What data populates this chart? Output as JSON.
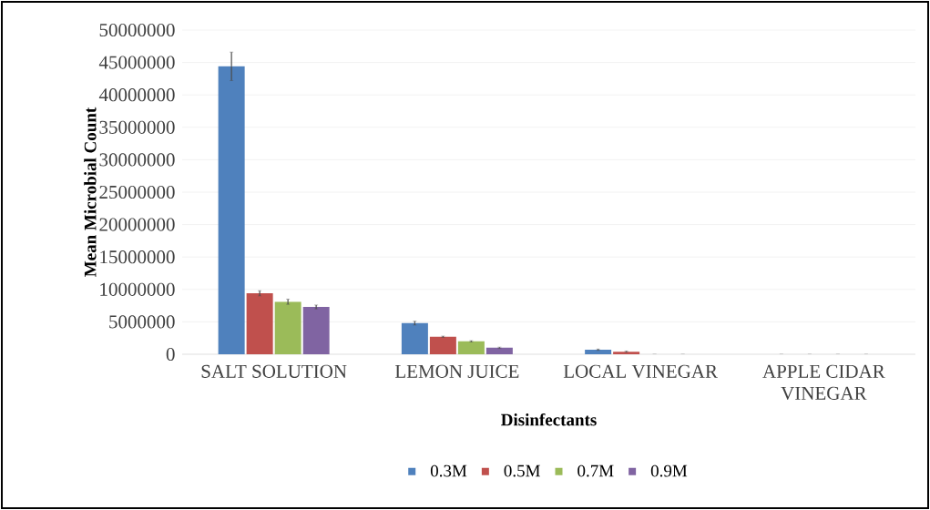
{
  "chart_data": {
    "type": "bar",
    "xlabel": "Disinfectants",
    "ylabel": "Mean Microbial Count",
    "categories": [
      "SALT SOLUTION",
      "LEMON JUICE",
      "LOCAL VINEGAR",
      "APPLE CIDAR VINEGAR"
    ],
    "series": [
      {
        "name": "0.3M",
        "color": "#4f81bd",
        "values": [
          44400000,
          4800000,
          700000,
          0
        ],
        "errors": [
          2200000,
          300000,
          100000,
          null
        ]
      },
      {
        "name": "0.5M",
        "color": "#c0504d",
        "values": [
          9400000,
          2700000,
          400000,
          0
        ],
        "errors": [
          400000,
          100000,
          100000,
          null
        ]
      },
      {
        "name": "0.7M",
        "color": "#9bbb59",
        "values": [
          8100000,
          2000000,
          0,
          0
        ],
        "errors": [
          400000,
          100000,
          null,
          null
        ]
      },
      {
        "name": "0.9M",
        "color": "#8064a2",
        "values": [
          7300000,
          1000000,
          0,
          0
        ],
        "errors": [
          300000,
          100000,
          null,
          null
        ]
      }
    ],
    "ylim": [
      0,
      50000000
    ],
    "yticks": [
      0,
      5000000,
      10000000,
      15000000,
      20000000,
      25000000,
      30000000,
      35000000,
      40000000,
      45000000,
      50000000
    ],
    "grid": "y",
    "legend": "bottom"
  }
}
